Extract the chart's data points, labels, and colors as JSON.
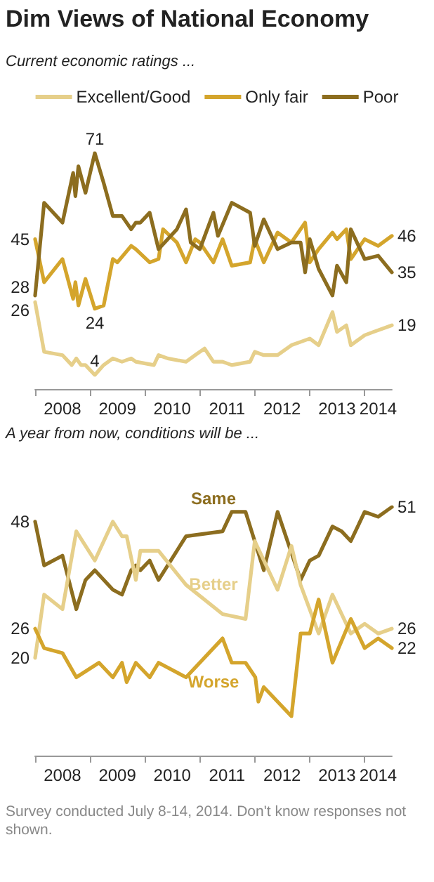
{
  "chart_data": [
    {
      "type": "line",
      "title": "Dim Views of National Economy",
      "subtitle": "Current economic ratings ...",
      "legend": "top",
      "marker": "none",
      "line_style": "solid",
      "tick_labels": "x",
      "xlim": [
        "2008-01",
        "2014-07"
      ],
      "xticks": [
        {
          "value": "2008-07",
          "label": "2008"
        },
        {
          "value": "2009-07",
          "label": "2009"
        },
        {
          "value": "2010-07",
          "label": "2010"
        },
        {
          "value": "2011-07",
          "label": "2011"
        },
        {
          "value": "2012-07",
          "label": "2012"
        },
        {
          "value": "2013-07",
          "label": "2013"
        },
        {
          "value": "2014-04",
          "label": "2014"
        }
      ],
      "series": [
        {
          "name": "Excellent/Good",
          "color": "#e6cf8a",
          "x": [
            "2008-01",
            "2008-03",
            "2008-07",
            "2008-09",
            "2008-10",
            "2008-11",
            "2008-12",
            "2009-02",
            "2009-04",
            "2009-06",
            "2009-08",
            "2009-10",
            "2009-11",
            "2010-03",
            "2010-04",
            "2010-06",
            "2010-10",
            "2010-12",
            "2011-02",
            "2011-04",
            "2011-06",
            "2011-08",
            "2011-12",
            "2012-01",
            "2012-03",
            "2012-06",
            "2012-09",
            "2012-11",
            "2013-01",
            "2013-03",
            "2013-06",
            "2013-07",
            "2013-09",
            "2013-10",
            "2014-01",
            "2014-03",
            "2014-07"
          ],
          "values": [
            26,
            11,
            10,
            7,
            9,
            7,
            7,
            4,
            7,
            9,
            8,
            9,
            8,
            7,
            10,
            9,
            8,
            10,
            12,
            8,
            8,
            7,
            8,
            11,
            10,
            10,
            13,
            14,
            15,
            13,
            23,
            17,
            19,
            13,
            16,
            17,
            19
          ],
          "value_labels": [
            "26",
            null,
            null,
            null,
            null,
            null,
            null,
            "4",
            null,
            null,
            null,
            null,
            null,
            null,
            null,
            null,
            null,
            null,
            null,
            null,
            null,
            null,
            null,
            null,
            null,
            null,
            null,
            null,
            null,
            null,
            null,
            null,
            null,
            null,
            null,
            null,
            "19"
          ]
        },
        {
          "name": "Only fair",
          "color": "#d4a52c",
          "x": [
            "2008-01",
            "2008-03",
            "2008-07",
            "2008-09-10",
            "2008-09-25",
            "2008-10-15",
            "2008-12",
            "2009-02",
            "2009-04",
            "2009-06",
            "2009-07",
            "2009-10",
            "2009-11",
            "2010-02",
            "2010-04",
            "2010-05",
            "2010-08",
            "2010-10",
            "2010-12",
            "2011-01",
            "2011-04",
            "2011-06",
            "2011-08",
            "2011-12",
            "2012-01",
            "2012-03",
            "2012-06",
            "2012-08",
            "2012-09",
            "2012-12",
            "2013-01",
            "2013-03",
            "2013-06",
            "2013-07",
            "2013-09",
            "2013-10",
            "2014-01",
            "2014-04",
            "2014-07"
          ],
          "values": [
            45,
            32,
            39,
            27,
            32,
            25,
            33,
            24,
            25,
            39,
            38,
            43,
            42,
            38,
            39,
            48,
            44,
            38,
            45,
            44,
            38,
            45,
            37,
            38,
            45,
            38,
            47,
            45,
            44,
            50,
            38,
            42,
            47,
            45,
            48,
            39,
            45,
            43,
            46
          ],
          "value_labels": [
            "45",
            null,
            null,
            null,
            null,
            null,
            null,
            "24",
            null,
            null,
            null,
            null,
            null,
            null,
            null,
            null,
            null,
            null,
            null,
            null,
            null,
            null,
            null,
            null,
            null,
            null,
            null,
            null,
            null,
            null,
            null,
            null,
            null,
            null,
            null,
            null,
            null,
            null,
            "46"
          ]
        },
        {
          "name": "Poor",
          "color": "#8c6d1f",
          "x": [
            "2008-01",
            "2008-03",
            "2008-07",
            "2008-09-10",
            "2008-09-25",
            "2008-10-15",
            "2008-12",
            "2009-02",
            "2009-04",
            "2009-06",
            "2009-08",
            "2009-10",
            "2009-11",
            "2009-12",
            "2010-02",
            "2010-04",
            "2010-08",
            "2010-10",
            "2010-11",
            "2011-01",
            "2011-04",
            "2011-05",
            "2011-08",
            "2011-12",
            "2012-01",
            "2012-03",
            "2012-06",
            "2012-09",
            "2012-11",
            "2012-12",
            "2013-01",
            "2013-03",
            "2013-06",
            "2013-07",
            "2013-09",
            "2013-10",
            "2014-01",
            "2014-04",
            "2014-07"
          ],
          "values": [
            28,
            56,
            50,
            65,
            58,
            67,
            59,
            71,
            62,
            52,
            52,
            48,
            50,
            50,
            53,
            42,
            48,
            54,
            44,
            42,
            53,
            46,
            56,
            53,
            43,
            51,
            42,
            44,
            44,
            35,
            45,
            36,
            28,
            37,
            32,
            48,
            39,
            40,
            35
          ],
          "value_labels": [
            "28",
            null,
            null,
            null,
            null,
            null,
            null,
            "71",
            null,
            null,
            null,
            null,
            null,
            null,
            null,
            null,
            null,
            null,
            null,
            null,
            null,
            null,
            null,
            null,
            null,
            null,
            null,
            null,
            null,
            null,
            null,
            null,
            null,
            null,
            null,
            null,
            null,
            null,
            "35"
          ]
        }
      ]
    },
    {
      "type": "line",
      "subtitle": "A year from now, conditions will be ...",
      "legend": false,
      "marker": "none",
      "line_style": "solid",
      "tick_labels": "x",
      "xlim": [
        "2008-01",
        "2014-07"
      ],
      "xticks": [
        {
          "value": "2008-07",
          "label": "2008"
        },
        {
          "value": "2009-07",
          "label": "2009"
        },
        {
          "value": "2010-07",
          "label": "2010"
        },
        {
          "value": "2011-07",
          "label": "2011"
        },
        {
          "value": "2012-07",
          "label": "2012"
        },
        {
          "value": "2013-07",
          "label": "2013"
        },
        {
          "value": "2014-04",
          "label": "2014"
        }
      ],
      "annotations": [
        "Survey conducted July 8-14, 2014. Don't know responses not shown."
      ],
      "series": [
        {
          "name": "Same",
          "color": "#8c6d1f",
          "x": [
            "2008-01",
            "2008-03",
            "2008-07",
            "2008-10",
            "2008-12",
            "2009-02",
            "2009-06",
            "2009-08",
            "2009-10",
            "2009-11",
            "2009-12",
            "2010-02",
            "2010-04",
            "2010-10",
            "2011-06",
            "2011-08",
            "2011-11",
            "2012-03",
            "2012-06",
            "2012-11",
            "2013-01",
            "2013-03",
            "2013-06",
            "2013-08",
            "2013-10",
            "2014-01",
            "2014-04",
            "2014-07"
          ],
          "values": [
            48,
            39,
            41,
            30,
            36,
            38,
            34,
            33,
            38,
            39,
            38,
            40,
            36,
            45,
            46,
            50,
            50,
            38,
            50,
            36,
            40,
            41,
            47,
            46,
            44,
            50,
            49,
            51
          ],
          "value_labels": [
            "48",
            null,
            null,
            null,
            null,
            null,
            null,
            null,
            null,
            null,
            null,
            null,
            null,
            null,
            null,
            null,
            null,
            null,
            null,
            null,
            null,
            null,
            null,
            null,
            null,
            null,
            null,
            "51"
          ]
        },
        {
          "name": "Better",
          "color": "#e6cf8a",
          "x": [
            "2008-01",
            "2008-03",
            "2008-07",
            "2008-10",
            "2009-02",
            "2009-06",
            "2009-08",
            "2009-09",
            "2009-11",
            "2009-12",
            "2010-02",
            "2010-04",
            "2010-10",
            "2011-06",
            "2011-11",
            "2012-01",
            "2012-06",
            "2012-09",
            "2012-11",
            "2013-03",
            "2013-06",
            "2013-10",
            "2014-01",
            "2014-04",
            "2014-07"
          ],
          "values": [
            20,
            33,
            30,
            46,
            40,
            48,
            45,
            45,
            36,
            42,
            42,
            42,
            35,
            29,
            28,
            44,
            34,
            43,
            35,
            25,
            33,
            25,
            27,
            25,
            26
          ],
          "value_labels": [
            "20",
            null,
            null,
            null,
            null,
            null,
            null,
            null,
            null,
            null,
            null,
            null,
            null,
            null,
            null,
            null,
            null,
            null,
            null,
            null,
            null,
            null,
            null,
            null,
            "26"
          ]
        },
        {
          "name": "Worse",
          "color": "#d4a52c",
          "x": [
            "2008-01",
            "2008-03",
            "2008-07",
            "2008-10",
            "2009-03",
            "2009-06",
            "2009-08",
            "2009-09",
            "2009-11",
            "2010-02",
            "2010-04",
            "2010-10",
            "2011-06",
            "2011-08",
            "2011-11",
            "2012-01-05",
            "2012-01-25",
            "2012-03",
            "2012-09",
            "2012-11",
            "2013-01",
            "2013-03",
            "2013-06",
            "2013-10",
            "2014-01",
            "2014-04",
            "2014-07"
          ],
          "values": [
            26,
            22,
            21,
            16,
            19,
            16,
            19,
            15,
            19,
            16,
            19,
            16,
            24,
            19,
            19,
            16,
            11,
            14,
            8,
            25,
            25,
            32,
            19,
            28,
            22,
            24,
            22
          ],
          "value_labels": [
            "26",
            null,
            null,
            null,
            null,
            null,
            null,
            null,
            null,
            null,
            null,
            null,
            null,
            null,
            null,
            null,
            null,
            null,
            null,
            null,
            null,
            null,
            null,
            null,
            null,
            null,
            "22"
          ]
        }
      ]
    }
  ]
}
